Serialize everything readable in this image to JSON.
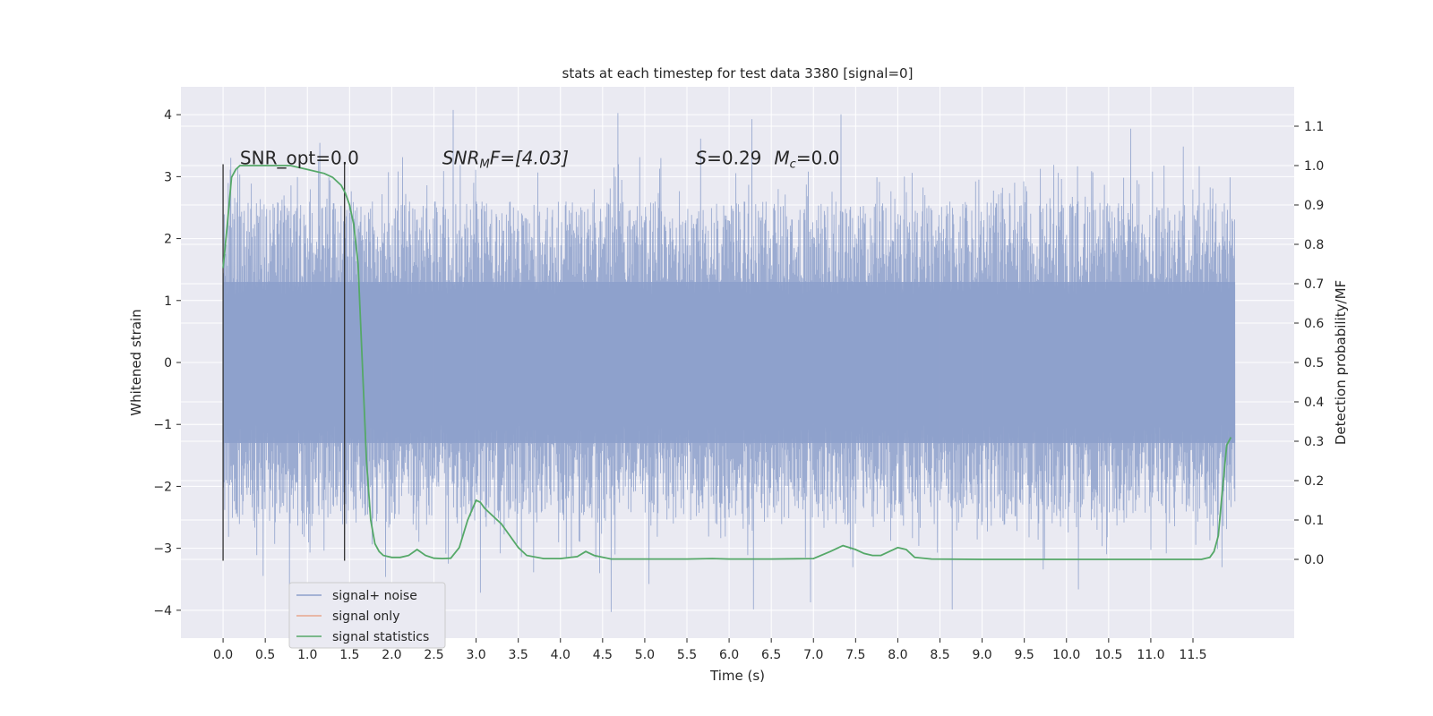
{
  "chart_data": {
    "type": "line",
    "title": "stats at each timestep for test data 3380 [signal=0]",
    "xlabel": "Time (s)",
    "ylabel": "Whitened strain",
    "ylabel_right": "Detection probability/MF",
    "xlim": [
      -0.5,
      12.7
    ],
    "ylim": [
      -4.45,
      4.45
    ],
    "ylim_right": [
      -0.2,
      1.2
    ],
    "x_ticks": [
      0.0,
      0.5,
      1.0,
      1.5,
      2.0,
      2.5,
      3.0,
      3.5,
      4.0,
      4.5,
      5.0,
      5.5,
      6.0,
      6.5,
      7.0,
      7.5,
      8.0,
      8.5,
      9.0,
      9.5,
      10.0,
      10.5,
      11.0,
      11.5
    ],
    "x_tick_labels": [
      "0.0",
      "0.5",
      "1.0",
      "1.5",
      "2.0",
      "2.5",
      "3.0",
      "3.5",
      "4.0",
      "4.5",
      "5.0",
      "5.5",
      "6.0",
      "6.5",
      "7.0",
      "7.5",
      "8.0",
      "8.5",
      "9.0",
      "9.5",
      "10.0",
      "10.5",
      "11.0",
      "11.5"
    ],
    "y_ticks": [
      4,
      3,
      2,
      1,
      0,
      -1,
      -2,
      -3,
      -4
    ],
    "y_tick_labels": [
      "4",
      "3",
      "2",
      "1",
      "0",
      "−1",
      "−2",
      "−3",
      "−4"
    ],
    "y_right_ticks": [
      1.1,
      1.0,
      0.9,
      0.8,
      0.7,
      0.6,
      0.5,
      0.4,
      0.3,
      0.2,
      0.1,
      0.0
    ],
    "y_right_tick_labels": [
      "1.1",
      "1.0",
      "0.9",
      "0.8",
      "0.7",
      "0.6",
      "0.5",
      "0.4",
      "0.3",
      "0.2",
      "0.1",
      "0.0"
    ],
    "grid": true,
    "legend_position": "lower-left",
    "legend": [
      "signal+ noise",
      "signal only",
      "signal statistics"
    ],
    "series": [
      {
        "name": "signal+ noise",
        "color": "#8da0cb",
        "axis": "left",
        "kind": "noise",
        "x_range": [
          0.0,
          12.0
        ],
        "typical_min": -2.6,
        "typical_max": 2.7,
        "max_peak": 4.08,
        "min_trough": -4.08
      },
      {
        "name": "signal only",
        "color": "#e8a68c",
        "axis": "left",
        "kind": "line",
        "x": [],
        "y": []
      },
      {
        "name": "signal statistics",
        "color": "#55a868",
        "axis": "right",
        "kind": "line",
        "x": [
          0.0,
          0.05,
          0.1,
          0.15,
          0.2,
          0.3,
          0.5,
          0.8,
          1.0,
          1.2,
          1.3,
          1.4,
          1.45,
          1.5,
          1.55,
          1.6,
          1.65,
          1.7,
          1.75,
          1.8,
          1.85,
          1.9,
          2.0,
          2.1,
          2.2,
          2.3,
          2.4,
          2.5,
          2.6,
          2.7,
          2.8,
          2.9,
          3.0,
          3.05,
          3.1,
          3.2,
          3.3,
          3.4,
          3.5,
          3.6,
          3.8,
          4.0,
          4.2,
          4.3,
          4.4,
          4.6,
          5.0,
          5.5,
          5.8,
          6.0,
          6.5,
          7.0,
          7.2,
          7.35,
          7.5,
          7.6,
          7.7,
          7.8,
          7.9,
          8.0,
          8.1,
          8.2,
          8.4,
          9.0,
          10.0,
          11.0,
          11.6,
          11.7,
          11.75,
          11.8,
          11.85,
          11.9,
          11.95
        ],
        "y": [
          0.74,
          0.85,
          0.97,
          0.99,
          1.0,
          1.0,
          1.0,
          1.0,
          0.99,
          0.98,
          0.97,
          0.95,
          0.93,
          0.9,
          0.85,
          0.75,
          0.5,
          0.25,
          0.1,
          0.04,
          0.02,
          0.01,
          0.005,
          0.005,
          0.01,
          0.025,
          0.01,
          0.003,
          0.002,
          0.003,
          0.03,
          0.1,
          0.15,
          0.145,
          0.13,
          0.11,
          0.09,
          0.06,
          0.03,
          0.01,
          0.002,
          0.002,
          0.007,
          0.02,
          0.01,
          0.001,
          0.001,
          0.001,
          0.002,
          0.001,
          0.001,
          0.002,
          0.02,
          0.035,
          0.025,
          0.015,
          0.01,
          0.01,
          0.02,
          0.03,
          0.025,
          0.005,
          0.001,
          0.0,
          0.0,
          0.0,
          0.0,
          0.005,
          0.02,
          0.06,
          0.18,
          0.29,
          0.31
        ]
      }
    ],
    "vertical_markers": {
      "x": [
        0.0,
        1.44
      ],
      "y_range": [
        -3.2,
        3.2
      ],
      "color": "#333333"
    },
    "annotations": [
      {
        "x": 0.2,
        "y": 3.2,
        "text": "SNR_opt=0.0",
        "math": false
      },
      {
        "x": 2.6,
        "y": 3.2,
        "text": "SNR_MF=[4.03]",
        "math": true,
        "parts": {
          "base": "SNR",
          "sub": "M",
          "rest": "F=[4.03]"
        }
      },
      {
        "x": 5.6,
        "y": 3.2,
        "text": "S=0.29   M_c=0.0",
        "math": true,
        "parts": {
          "s": "S",
          "s_rest": "=0.29",
          "m": "M",
          "m_sub": "c",
          "m_rest": "=0.0"
        }
      }
    ],
    "colors": {
      "plot_bg": "#eaeaf2",
      "grid": "#ffffff",
      "noise": "#8da0cb",
      "signal_only": "#e8a68c",
      "statistics": "#55a868"
    }
  }
}
